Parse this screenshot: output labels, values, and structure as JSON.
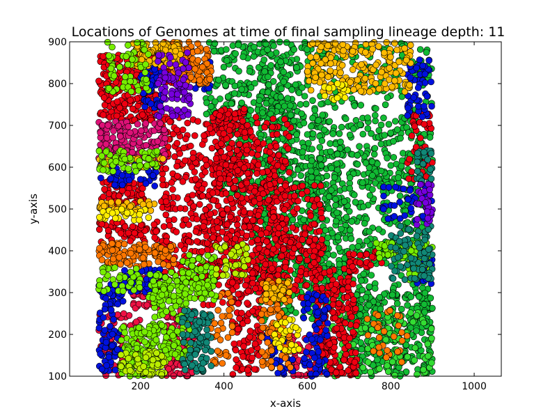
{
  "chart_data": {
    "type": "scatter",
    "title": "Locations of Genomes at time of final sampling lineage depth: 11",
    "xlabel": "x-axis",
    "ylabel": "y-axis",
    "xlim": [
      30,
      1065
    ],
    "ylim": [
      100,
      900
    ],
    "x_ticks": [
      "200",
      "400",
      "600",
      "800",
      "1000"
    ],
    "y_ticks": [
      "100",
      "200",
      "300",
      "400",
      "500",
      "600",
      "700",
      "800",
      "900"
    ],
    "x_tick_values": [
      200,
      400,
      600,
      800,
      1000
    ],
    "y_tick_values": [
      100,
      200,
      300,
      400,
      500,
      600,
      700,
      800,
      900
    ],
    "grid": false,
    "legend": "none",
    "marker": "circle",
    "marker_edge_color": "#000000",
    "colors": {
      "red": "#ee0011",
      "green": "#11bb33",
      "blue": "#0011dd",
      "orange": "#ff7700",
      "yellow_orange": "#ffbb00",
      "lime": "#77ee00",
      "yellow_green": "#bbee00",
      "magenta": "#dd1177",
      "crimson": "#ee1144",
      "teal": "#118877",
      "purple": "#7700dd",
      "yellow": "#ffee00",
      "bright_green": "#33dd33"
    },
    "regions": [
      {
        "color": "green",
        "x": [
          355,
          580
        ],
        "y": [
          700,
          900
        ],
        "n": 220
      },
      {
        "color": "green",
        "x": [
          390,
          640
        ],
        "y": [
          530,
          760
        ],
        "n": 260
      },
      {
        "color": "green",
        "x": [
          480,
          900
        ],
        "y": [
          560,
          900
        ],
        "n": 420
      },
      {
        "color": "green",
        "x": [
          470,
          700
        ],
        "y": [
          320,
          560
        ],
        "n": 240
      },
      {
        "color": "green",
        "x": [
          600,
          880
        ],
        "y": [
          380,
          640
        ],
        "n": 260
      },
      {
        "color": "green",
        "x": [
          470,
          900
        ],
        "y": [
          230,
          400
        ],
        "n": 260
      },
      {
        "color": "green",
        "x": [
          700,
          900
        ],
        "y": [
          100,
          300
        ],
        "n": 260
      },
      {
        "color": "bright_green",
        "x": [
          640,
          900
        ],
        "y": [
          100,
          260
        ],
        "n": 120
      },
      {
        "color": "red",
        "x": [
          250,
          560
        ],
        "y": [
          320,
          720
        ],
        "n": 600
      },
      {
        "color": "red",
        "x": [
          340,
          640
        ],
        "y": [
          270,
          560
        ],
        "n": 340
      },
      {
        "color": "red",
        "x": [
          380,
          460
        ],
        "y": [
          560,
          740
        ],
        "n": 100
      },
      {
        "color": "red",
        "x": [
          100,
          240
        ],
        "y": [
          710,
          870
        ],
        "n": 200
      },
      {
        "color": "red",
        "x": [
          240,
          320
        ],
        "y": [
          800,
          900
        ],
        "n": 50
      },
      {
        "color": "red",
        "x": [
          620,
          720
        ],
        "y": [
          100,
          360
        ],
        "n": 200
      },
      {
        "color": "red",
        "x": [
          420,
          490
        ],
        "y": [
          100,
          360
        ],
        "n": 100
      },
      {
        "color": "red",
        "x": [
          100,
          210
        ],
        "y": [
          510,
          570
        ],
        "n": 60
      },
      {
        "color": "red",
        "x": [
          100,
          240
        ],
        "y": [
          420,
          470
        ],
        "n": 60
      },
      {
        "color": "red",
        "x": [
          540,
          640
        ],
        "y": [
          380,
          440
        ],
        "n": 40
      },
      {
        "color": "red",
        "x": [
          840,
          900
        ],
        "y": [
          560,
          730
        ],
        "n": 40
      },
      {
        "color": "red",
        "x": [
          680,
          780
        ],
        "y": [
          360,
          400
        ],
        "n": 25
      },
      {
        "color": "crimson",
        "x": [
          260,
          330
        ],
        "y": [
          100,
          260
        ],
        "n": 120
      },
      {
        "color": "crimson",
        "x": [
          100,
          200
        ],
        "y": [
          100,
          250
        ],
        "n": 90
      },
      {
        "color": "crimson",
        "x": [
          180,
          250
        ],
        "y": [
          260,
          340
        ],
        "n": 60
      },
      {
        "color": "crimson",
        "x": [
          560,
          620
        ],
        "y": [
          100,
          200
        ],
        "n": 40
      },
      {
        "color": "magenta",
        "x": [
          100,
          260
        ],
        "y": [
          610,
          710
        ],
        "n": 170
      },
      {
        "color": "blue",
        "x": [
          100,
          160
        ],
        "y": [
          110,
          320
        ],
        "n": 90
      },
      {
        "color": "blue",
        "x": [
          200,
          250
        ],
        "y": [
          740,
          850
        ],
        "n": 50
      },
      {
        "color": "blue",
        "x": [
          160,
          250
        ],
        "y": [
          300,
          360
        ],
        "n": 50
      },
      {
        "color": "blue",
        "x": [
          840,
          900
        ],
        "y": [
          720,
          860
        ],
        "n": 50
      },
      {
        "color": "blue",
        "x": [
          590,
          650
        ],
        "y": [
          100,
          300
        ],
        "n": 70
      },
      {
        "color": "blue",
        "x": [
          500,
          570
        ],
        "y": [
          100,
          200
        ],
        "n": 40
      },
      {
        "color": "blue",
        "x": [
          780,
          900
        ],
        "y": [
          470,
          560
        ],
        "n": 40
      },
      {
        "color": "blue",
        "x": [
          100,
          240
        ],
        "y": [
          555,
          610
        ],
        "n": 50
      },
      {
        "color": "blue",
        "x": [
          860,
          900
        ],
        "y": [
          320,
          420
        ],
        "n": 25
      },
      {
        "color": "blue",
        "x": [
          330,
          370
        ],
        "y": [
          780,
          860
        ],
        "n": 20
      },
      {
        "color": "orange",
        "x": [
          100,
          280
        ],
        "y": [
          360,
          420
        ],
        "n": 120
      },
      {
        "color": "orange",
        "x": [
          270,
          370
        ],
        "y": [
          800,
          900
        ],
        "n": 120
      },
      {
        "color": "orange",
        "x": [
          490,
          560
        ],
        "y": [
          120,
          330
        ],
        "n": 120
      },
      {
        "color": "orange",
        "x": [
          360,
          420
        ],
        "y": [
          130,
          300
        ],
        "n": 40
      },
      {
        "color": "orange",
        "x": [
          740,
          840
        ],
        "y": [
          130,
          260
        ],
        "n": 30
      },
      {
        "color": "yellow_orange",
        "x": [
          180,
          300
        ],
        "y": [
          840,
          900
        ],
        "n": 100
      },
      {
        "color": "yellow_orange",
        "x": [
          600,
          760
        ],
        "y": [
          780,
          900
        ],
        "n": 140
      },
      {
        "color": "yellow_orange",
        "x": [
          760,
          850
        ],
        "y": [
          780,
          900
        ],
        "n": 60
      },
      {
        "color": "yellow_orange",
        "x": [
          100,
          240
        ],
        "y": [
          490,
          520
        ],
        "n": 40
      },
      {
        "color": "yellow_orange",
        "x": [
          500,
          560
        ],
        "y": [
          280,
          330
        ],
        "n": 30
      },
      {
        "color": "yellow_orange",
        "x": [
          100,
          260
        ],
        "y": [
          600,
          625
        ],
        "n": 25
      },
      {
        "color": "lime",
        "x": [
          220,
          320
        ],
        "y": [
          140,
          350
        ],
        "n": 180
      },
      {
        "color": "lime",
        "x": [
          150,
          240
        ],
        "y": [
          100,
          220
        ],
        "n": 120
      },
      {
        "color": "lime",
        "x": [
          300,
          380
        ],
        "y": [
          280,
          390
        ],
        "n": 80
      },
      {
        "color": "lime",
        "x": [
          120,
          220
        ],
        "y": [
          780,
          900
        ],
        "n": 60
      },
      {
        "color": "lime",
        "x": [
          100,
          240
        ],
        "y": [
          590,
          640
        ],
        "n": 60
      },
      {
        "color": "lime",
        "x": [
          100,
          200
        ],
        "y": [
          300,
          360
        ],
        "n": 40
      },
      {
        "color": "lime",
        "x": [
          840,
          900
        ],
        "y": [
          330,
          420
        ],
        "n": 40
      },
      {
        "color": "lime",
        "x": [
          760,
          860
        ],
        "y": [
          380,
          420
        ],
        "n": 30
      },
      {
        "color": "yellow_green",
        "x": [
          150,
          260
        ],
        "y": [
          100,
          160
        ],
        "n": 60
      },
      {
        "color": "yellow_green",
        "x": [
          380,
          460
        ],
        "y": [
          340,
          420
        ],
        "n": 40
      },
      {
        "color": "teal",
        "x": [
          300,
          370
        ],
        "y": [
          110,
          260
        ],
        "n": 100
      },
      {
        "color": "teal",
        "x": [
          800,
          900
        ],
        "y": [
          330,
          460
        ],
        "n": 80
      },
      {
        "color": "teal",
        "x": [
          860,
          900
        ],
        "y": [
          560,
          640
        ],
        "n": 30
      },
      {
        "color": "purple",
        "x": [
          240,
          320
        ],
        "y": [
          720,
          880
        ],
        "n": 80
      },
      {
        "color": "purple",
        "x": [
          860,
          900
        ],
        "y": [
          460,
          560
        ],
        "n": 30
      },
      {
        "color": "yellow",
        "x": [
          520,
          580
        ],
        "y": [
          160,
          240
        ],
        "n": 30
      },
      {
        "color": "yellow",
        "x": [
          100,
          220
        ],
        "y": [
          470,
          500
        ],
        "n": 25
      },
      {
        "color": "yellow",
        "x": [
          640,
          700
        ],
        "y": [
          760,
          800
        ],
        "n": 20
      }
    ]
  }
}
